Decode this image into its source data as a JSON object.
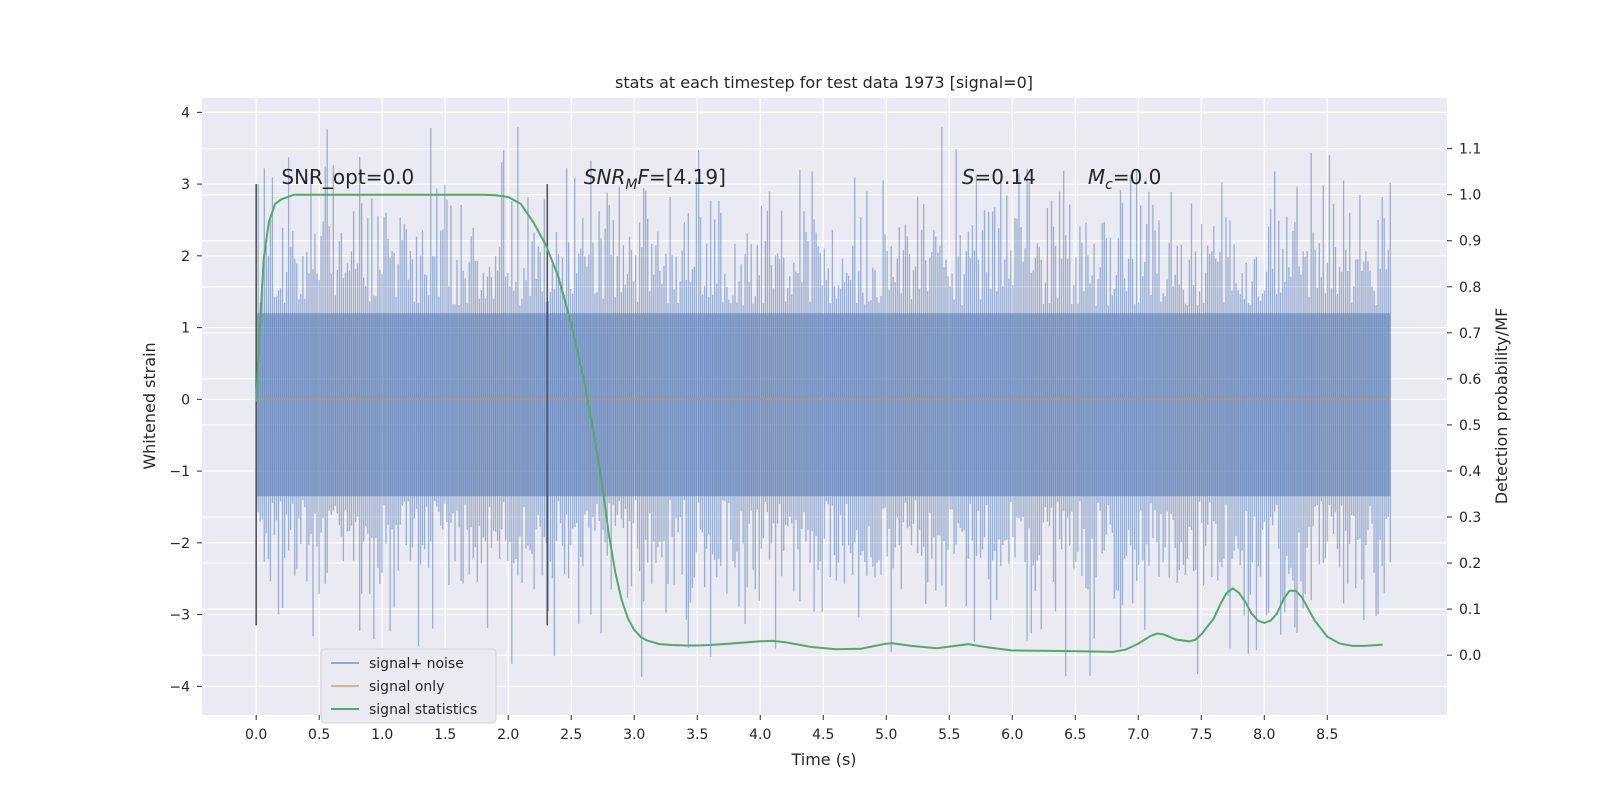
{
  "chart_data": {
    "type": "line",
    "title": "stats at each timestep for test data 1973 [signal=0]",
    "xlabel": "Time (s)",
    "ylabel": "Whitened strain",
    "ylabel_right": "Detection probability/MF",
    "xlim": [
      -0.43,
      9.45
    ],
    "ylim": [
      -4.4,
      4.2
    ],
    "ylim_right": [
      -0.13,
      1.21
    ],
    "x_ticks": [
      0.0,
      0.5,
      1.0,
      1.5,
      2.0,
      2.5,
      3.0,
      3.5,
      4.0,
      4.5,
      5.0,
      5.5,
      6.0,
      6.5,
      7.0,
      7.5,
      8.0,
      8.5
    ],
    "x_tick_labels": [
      "0.0",
      "0.5",
      "1.0",
      "1.5",
      "2.0",
      "2.5",
      "3.0",
      "3.5",
      "4.0",
      "4.5",
      "5.0",
      "5.5",
      "6.0",
      "6.5",
      "7.0",
      "7.5",
      "8.0",
      "8.5"
    ],
    "y_ticks": [
      -4,
      -3,
      -2,
      -1,
      0,
      1,
      2,
      3,
      4
    ],
    "y_tick_labels": [
      "−4",
      "−3",
      "−2",
      "−1",
      "0",
      "1",
      "2",
      "3",
      "4"
    ],
    "y_right_ticks": [
      0.0,
      0.1,
      0.2,
      0.3,
      0.4,
      0.5,
      0.6,
      0.7,
      0.8,
      0.9,
      1.0,
      1.1
    ],
    "y_right_tick_labels": [
      "0.0",
      "0.1",
      "0.2",
      "0.3",
      "0.4",
      "0.5",
      "0.6",
      "0.7",
      "0.8",
      "0.9",
      "1.0",
      "1.1"
    ],
    "grid": true,
    "legend_position": "bottom-left",
    "colors": {
      "noise": "#4c72b0",
      "signal": "#dd8452",
      "stats": "#55a868",
      "vline": "#555555",
      "panel_bg": "#eaeaf2",
      "grid": "#ffffff"
    },
    "series": [
      {
        "name": "signal+ noise",
        "kind": "noise-band",
        "x_range": [
          0.0,
          9.0
        ],
        "core_band": [
          -1.35,
          1.2
        ],
        "max_spike": 3.8,
        "min_spike": -4.0
      },
      {
        "name": "signal only",
        "x": [
          0.0,
          9.0
        ],
        "y": [
          0.0,
          0.0
        ]
      },
      {
        "name": "signal statistics",
        "axis": "right",
        "x": [
          0.0,
          0.03,
          0.06,
          0.1,
          0.15,
          0.2,
          0.3,
          0.5,
          1.0,
          1.5,
          1.8,
          1.9,
          2.0,
          2.1,
          2.2,
          2.3,
          2.4,
          2.5,
          2.6,
          2.7,
          2.75,
          2.8,
          2.85,
          2.9,
          2.95,
          3.0,
          3.05,
          3.1,
          3.2,
          3.3,
          3.4,
          3.5,
          3.6,
          3.8,
          4.0,
          4.1,
          4.2,
          4.4,
          4.6,
          4.8,
          5.0,
          5.05,
          5.2,
          5.4,
          5.6,
          5.65,
          5.8,
          6.0,
          6.4,
          6.8,
          6.9,
          7.0,
          7.1,
          7.15,
          7.2,
          7.3,
          7.4,
          7.45,
          7.5,
          7.6,
          7.65,
          7.7,
          7.75,
          7.8,
          7.85,
          7.9,
          7.95,
          8.0,
          8.05,
          8.1,
          8.15,
          8.2,
          8.25,
          8.3,
          8.35,
          8.4,
          8.5,
          8.6,
          8.7,
          8.8,
          8.94
        ],
        "y": [
          0.55,
          0.72,
          0.86,
          0.94,
          0.98,
          0.99,
          1.0,
          1.0,
          1.0,
          1.0,
          1.0,
          0.999,
          0.995,
          0.98,
          0.94,
          0.89,
          0.82,
          0.72,
          0.6,
          0.45,
          0.36,
          0.26,
          0.18,
          0.12,
          0.08,
          0.055,
          0.04,
          0.032,
          0.024,
          0.022,
          0.021,
          0.021,
          0.022,
          0.026,
          0.03,
          0.031,
          0.028,
          0.018,
          0.013,
          0.014,
          0.025,
          0.026,
          0.02,
          0.015,
          0.022,
          0.024,
          0.017,
          0.01,
          0.009,
          0.007,
          0.012,
          0.025,
          0.042,
          0.047,
          0.045,
          0.034,
          0.03,
          0.033,
          0.045,
          0.08,
          0.11,
          0.135,
          0.145,
          0.135,
          0.115,
          0.09,
          0.075,
          0.07,
          0.075,
          0.09,
          0.12,
          0.14,
          0.14,
          0.125,
          0.1,
          0.075,
          0.04,
          0.025,
          0.02,
          0.02,
          0.023
        ]
      }
    ],
    "vlines": [
      {
        "x": 0.0,
        "y_range": [
          -3.15,
          3.0
        ]
      },
      {
        "x": 2.31,
        "y_range": [
          -3.15,
          3.0
        ]
      }
    ],
    "annotations": [
      {
        "x": 0.2,
        "y": 3.0,
        "parts": [
          {
            "t": "SNR_opt=0.0"
          }
        ]
      },
      {
        "x": 2.6,
        "y": 3.0,
        "parts": [
          {
            "t": "SNR",
            "i": true
          },
          {
            "t": "M",
            "i": true,
            "sub": true
          },
          {
            "t": "F",
            "i": true
          },
          {
            "t": "=[4.19]"
          }
        ]
      },
      {
        "x": 5.6,
        "y": 3.0,
        "parts": [
          {
            "t": "S",
            "i": true
          },
          {
            "t": "=0.14"
          }
        ]
      },
      {
        "x": 6.6,
        "y": 3.0,
        "parts": [
          {
            "t": "M",
            "i": true
          },
          {
            "t": "c",
            "i": true,
            "sub": true
          },
          {
            "t": "=0.0"
          }
        ]
      }
    ]
  }
}
